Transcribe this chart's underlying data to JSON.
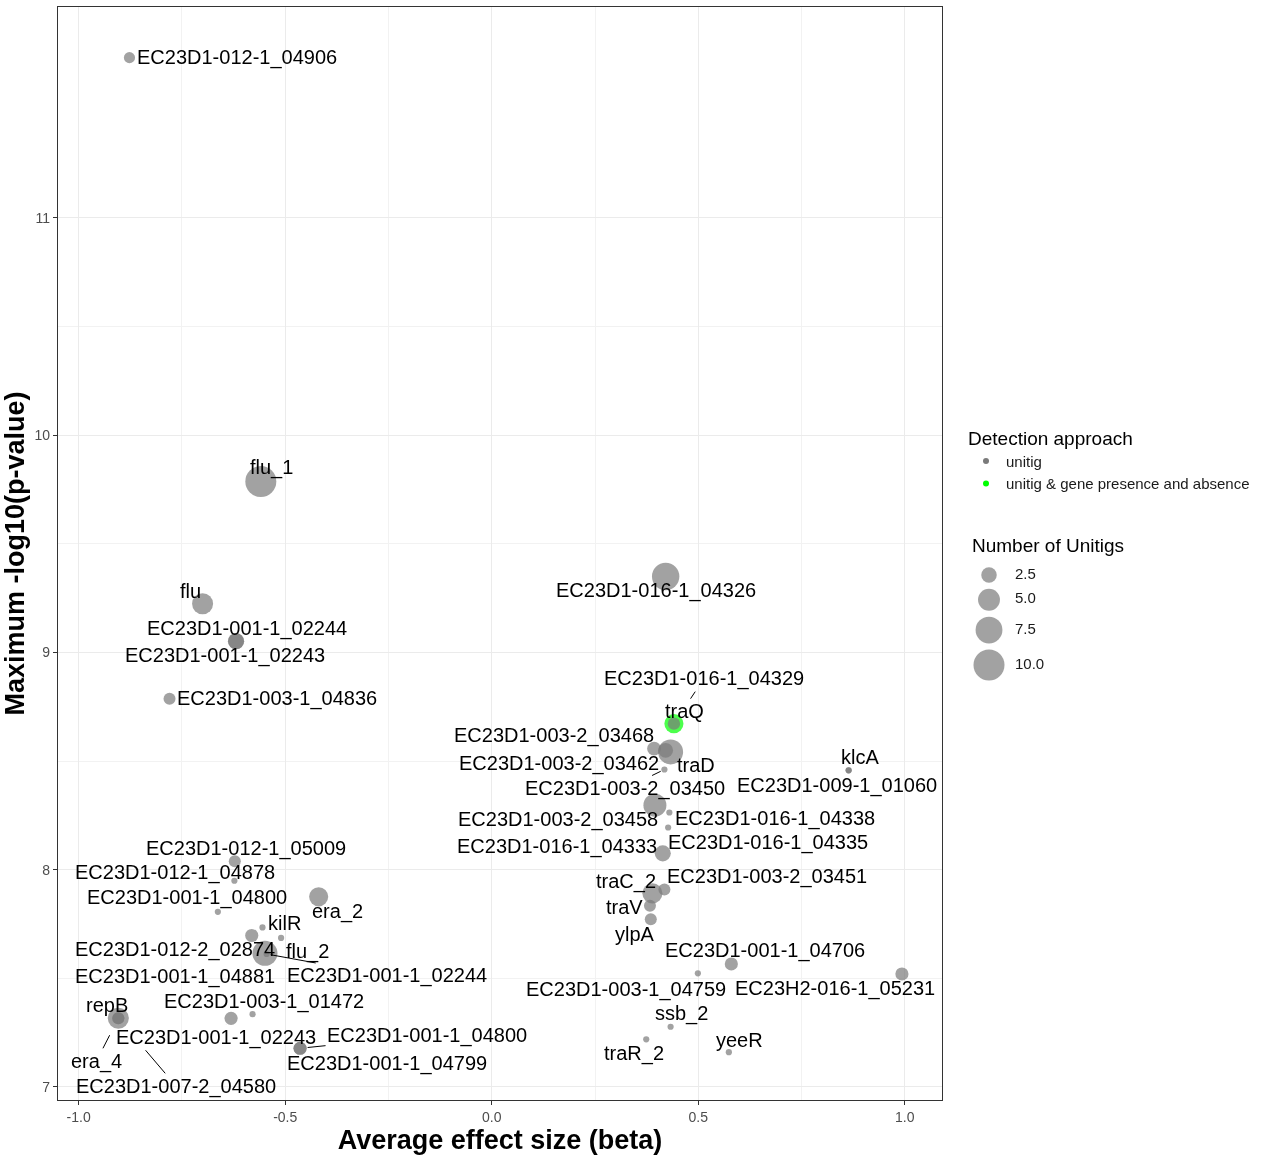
{
  "chart_data": {
    "type": "bubble",
    "xlabel": "Average effect size (beta)",
    "ylabel": "Maximum -log10(p-value)",
    "legend_title": [
      "Detection approach",
      "Number of Unitigs"
    ],
    "xlim": [
      -1.05,
      1.09
    ],
    "ylim": [
      6.94,
      11.97
    ],
    "xticks": [
      {
        "value": -1,
        "label": "-1.0"
      },
      {
        "value": -0.5,
        "label": "-0.5"
      },
      {
        "value": 0,
        "label": "0.0"
      },
      {
        "value": 0.5,
        "label": "0.5"
      },
      {
        "value": 1,
        "label": "1.0"
      }
    ],
    "yticks": [
      7,
      8,
      9,
      10,
      11
    ],
    "grid": true,
    "legend": "right",
    "marker": "circle",
    "size_legend": [
      {
        "value": 2.5,
        "label": "2.5"
      },
      {
        "value": 5,
        "label": "5.0"
      },
      {
        "value": 7.5,
        "label": "7.5"
      },
      {
        "value": 10,
        "label": "10.0"
      }
    ],
    "series": [
      {
        "name": "unitig",
        "color": "#7a7a7a",
        "x": [
          -0.877,
          -0.559,
          -0.7,
          -0.619,
          -0.619,
          -0.78,
          -0.622,
          -0.623,
          -0.663,
          -0.419,
          -0.555,
          -0.581,
          -0.51,
          -0.549,
          -0.545,
          -0.579,
          -0.904,
          -0.631,
          -0.464,
          -0.904,
          -0.464,
          -0.904,
          0.421,
          0.441,
          0.393,
          0.421,
          0.433,
          0.418,
          0.864,
          0.864,
          0.395,
          0.43,
          0.414,
          0.427,
          0.389,
          0.418,
          0.383,
          0.385,
          0.58,
          0.499,
          0.993,
          0.433,
          0.374,
          0.574
        ],
        "values": [
          11.737,
          9.786,
          9.224,
          9.051,
          9.051,
          8.787,
          8.039,
          7.949,
          7.806,
          7.875,
          7.734,
          7.697,
          7.686,
          7.615,
          7.612,
          7.335,
          7.316,
          7.316,
          7.178,
          7.316,
          7.178,
          7.316,
          9.349,
          8.672,
          8.557,
          8.549,
          8.542,
          8.461,
          8.457,
          8.457,
          8.297,
          8.263,
          8.075,
          8.194,
          7.891,
          7.909,
          7.834,
          7.772,
          7.566,
          7.523,
          7.52,
          7.277,
          7.219,
          7.16
        ],
        "sizes": [
          1.3,
          10.0,
          4.6,
          2.7,
          2.7,
          1.5,
          1.5,
          0.4,
          0.4,
          3.8,
          0.4,
          1.8,
          0.4,
          6.5,
          0.4,
          0.4,
          4.6,
          1.8,
          1.8,
          1.5,
          1.8,
          1.5,
          7.8,
          1.6,
          2.0,
          2.3,
          6.5,
          0.4,
          0.4,
          0.4,
          5.5,
          0.4,
          2.7,
          0.4,
          4.2,
          1.5,
          1.5,
          1.5,
          1.8,
          0.4,
          1.8,
          0.4,
          0.4,
          0.4
        ]
      },
      {
        "name": "unitig & gene presence and absence",
        "color": "#00ff00",
        "x": [
          0.441
        ],
        "values": [
          8.672
        ],
        "sizes": [
          3.8
        ]
      }
    ],
    "annotations": [
      {
        "text": "EC23D1-012-1_04906",
        "x": -0.877,
        "y": 11.737
      },
      {
        "text": "flu_1",
        "x": -0.559,
        "y": 9.786
      },
      {
        "text": "flu",
        "x": -0.7,
        "y": 9.224
      },
      {
        "text": "EC23D1-001-1_02244",
        "x": -0.619,
        "y": 9.051
      },
      {
        "text": "EC23D1-001-1_02243",
        "x": -0.619,
        "y": 9.051
      },
      {
        "text": "EC23D1-003-1_04836",
        "x": -0.78,
        "y": 8.787
      },
      {
        "text": "EC23D1-012-1_05009",
        "x": -0.622,
        "y": 8.039
      },
      {
        "text": "EC23D1-012-1_04878",
        "x": -0.623,
        "y": 7.949
      },
      {
        "text": "EC23D1-001-1_04800",
        "x": -0.663,
        "y": 7.806
      },
      {
        "text": "era_2",
        "x": -0.419,
        "y": 7.875
      },
      {
        "text": "kilR",
        "x": -0.555,
        "y": 7.734
      },
      {
        "text": "EC23D1-012-2_02874",
        "x": -0.581,
        "y": 7.697
      },
      {
        "text": "flu_2",
        "x": -0.51,
        "y": 7.686
      },
      {
        "text": "EC23D1-001-1_04881",
        "x": -0.549,
        "y": 7.615
      },
      {
        "text": "EC23D1-001-1_02244",
        "x": -0.545,
        "y": 7.612
      },
      {
        "text": "EC23D1-003-1_01472",
        "x": -0.579,
        "y": 7.335
      },
      {
        "text": "repB",
        "x": -0.904,
        "y": 7.316
      },
      {
        "text": "EC23D1-001-1_02243",
        "x": -0.631,
        "y": 7.316
      },
      {
        "text": "EC23D1-001-1_04800",
        "x": -0.464,
        "y": 7.178
      },
      {
        "text": "era_4",
        "x": -0.904,
        "y": 7.316
      },
      {
        "text": "EC23D1-001-1_04799",
        "x": -0.464,
        "y": 7.178
      },
      {
        "text": "EC23D1-007-2_04580",
        "x": -0.904,
        "y": 7.316
      },
      {
        "text": "EC23D1-016-1_04326",
        "x": 0.421,
        "y": 9.349
      },
      {
        "text": "EC23D1-016-1_04329",
        "x": 0.441,
        "y": 8.672
      },
      {
        "text": "traQ",
        "x": 0.441,
        "y": 8.672
      },
      {
        "text": "EC23D1-003-2_03468",
        "x": 0.393,
        "y": 8.557
      },
      {
        "text": "EC23D1-003-2_03462",
        "x": 0.421,
        "y": 8.549
      },
      {
        "text": "traD",
        "x": 0.433,
        "y": 8.542
      },
      {
        "text": "EC23D1-003-2_03450",
        "x": 0.418,
        "y": 8.461
      },
      {
        "text": "klcA",
        "x": 0.864,
        "y": 8.457
      },
      {
        "text": "EC23D1-009-1_01060",
        "x": 0.864,
        "y": 8.457
      },
      {
        "text": "EC23D1-003-2_03458",
        "x": 0.395,
        "y": 8.297
      },
      {
        "text": "EC23D1-016-1_04338",
        "x": 0.43,
        "y": 8.263
      },
      {
        "text": "EC23D1-016-1_04333",
        "x": 0.414,
        "y": 8.075
      },
      {
        "text": "EC23D1-016-1_04335",
        "x": 0.427,
        "y": 8.194
      },
      {
        "text": "traC_2",
        "x": 0.389,
        "y": 7.891
      },
      {
        "text": "EC23D1-003-2_03451",
        "x": 0.418,
        "y": 7.909
      },
      {
        "text": "traV",
        "x": 0.383,
        "y": 7.834
      },
      {
        "text": "ylpA",
        "x": 0.385,
        "y": 7.772
      },
      {
        "text": "EC23D1-001-1_04706",
        "x": 0.58,
        "y": 7.566
      },
      {
        "text": "EC23D1-003-1_04759",
        "x": 0.499,
        "y": 7.523
      },
      {
        "text": "EC23H2-016-1_05231",
        "x": 0.993,
        "y": 7.52
      },
      {
        "text": "ssb_2",
        "x": 0.433,
        "y": 7.277
      },
      {
        "text": "traR_2",
        "x": 0.374,
        "y": 7.219
      },
      {
        "text": "yeeR",
        "x": 0.574,
        "y": 7.16
      }
    ]
  }
}
